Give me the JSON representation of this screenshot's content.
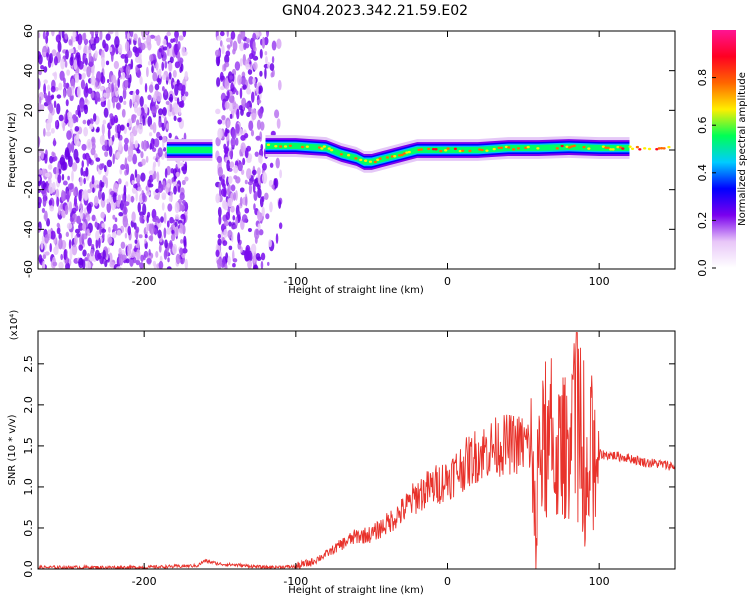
{
  "title": "GN04.2023.342.21.59.E02",
  "chart_data": [
    {
      "type": "heatmap",
      "xlabel": "Height of straight line (km)",
      "ylabel": "Frequency (Hz)",
      "xlim": [
        -270,
        150
      ],
      "ylim": [
        -60,
        60
      ],
      "x_ticks": [
        -200,
        -100,
        0,
        100
      ],
      "y_ticks": [
        -60,
        -40,
        -20,
        0,
        20,
        40,
        60
      ],
      "colorbar": {
        "label": "Normalized spectral amplitude",
        "range": [
          0.0,
          1.0
        ],
        "ticks": [
          0.0,
          0.2,
          0.4,
          0.6,
          0.8
        ],
        "colormap": [
          "#ffffff",
          "#e8c6f8",
          "#7a00ee",
          "#0000ff",
          "#00ccff",
          "#00ff55",
          "#ffee00",
          "#ff6600",
          "#ff0022",
          "#ff1493"
        ]
      },
      "noise_regions": [
        [
          -270,
          -172
        ],
        [
          -152,
          -122
        ],
        [
          -122,
          -110
        ]
      ],
      "signal_track": [
        [
          -185,
          0
        ],
        [
          -175,
          0
        ],
        [
          -165,
          0
        ],
        [
          -155,
          0
        ],
        [
          -120,
          2
        ],
        [
          -110,
          2
        ],
        [
          -100,
          2
        ],
        [
          -90,
          1.5
        ],
        [
          -80,
          1
        ],
        [
          -70,
          -2
        ],
        [
          -60,
          -4
        ],
        [
          -55,
          -6
        ],
        [
          -50,
          -6
        ],
        [
          -45,
          -5
        ],
        [
          -40,
          -4
        ],
        [
          -30,
          -2
        ],
        [
          -20,
          0
        ],
        [
          -10,
          0
        ],
        [
          0,
          0
        ],
        [
          10,
          0
        ],
        [
          20,
          0
        ],
        [
          40,
          1
        ],
        [
          60,
          1
        ],
        [
          80,
          1.5
        ],
        [
          100,
          1
        ],
        [
          120,
          1
        ],
        [
          150,
          1
        ]
      ],
      "signal_peak_regions": [
        [
          -10,
          15
        ],
        [
          60,
          80
        ],
        [
          115,
          150
        ]
      ]
    },
    {
      "type": "line",
      "xlabel": "Height of straight line (km)",
      "ylabel": "SNR (10 * v/v)",
      "y_multiplier": "(x10⁴)",
      "xlim": [
        -270,
        150
      ],
      "ylim": [
        0.0,
        2.9
      ],
      "x_ticks": [
        -200,
        -100,
        0,
        100
      ],
      "y_ticks": [
        0.0,
        0.5,
        1.0,
        1.5,
        2.0,
        2.5
      ],
      "color": "#e8322b",
      "x": [
        -270,
        -200,
        -165,
        -160,
        -155,
        -150,
        -140,
        -120,
        -100,
        -90,
        -80,
        -70,
        -60,
        -50,
        -40,
        -30,
        -20,
        -10,
        0,
        10,
        20,
        30,
        40,
        50,
        55,
        58,
        60,
        70,
        80,
        85,
        90,
        95,
        100,
        110,
        120,
        130,
        140,
        150
      ],
      "y": [
        0.02,
        0.02,
        0.04,
        0.1,
        0.08,
        0.06,
        0.05,
        0.02,
        0.03,
        0.08,
        0.18,
        0.3,
        0.4,
        0.42,
        0.55,
        0.7,
        0.9,
        1.0,
        1.1,
        1.25,
        1.4,
        1.48,
        1.52,
        1.52,
        1.5,
        0.15,
        1.45,
        1.4,
        1.5,
        2.9,
        0.4,
        1.5,
        1.4,
        1.38,
        1.35,
        1.3,
        1.28,
        1.25
      ],
      "spike_regions": [
        [
          55,
          100
        ]
      ]
    }
  ]
}
